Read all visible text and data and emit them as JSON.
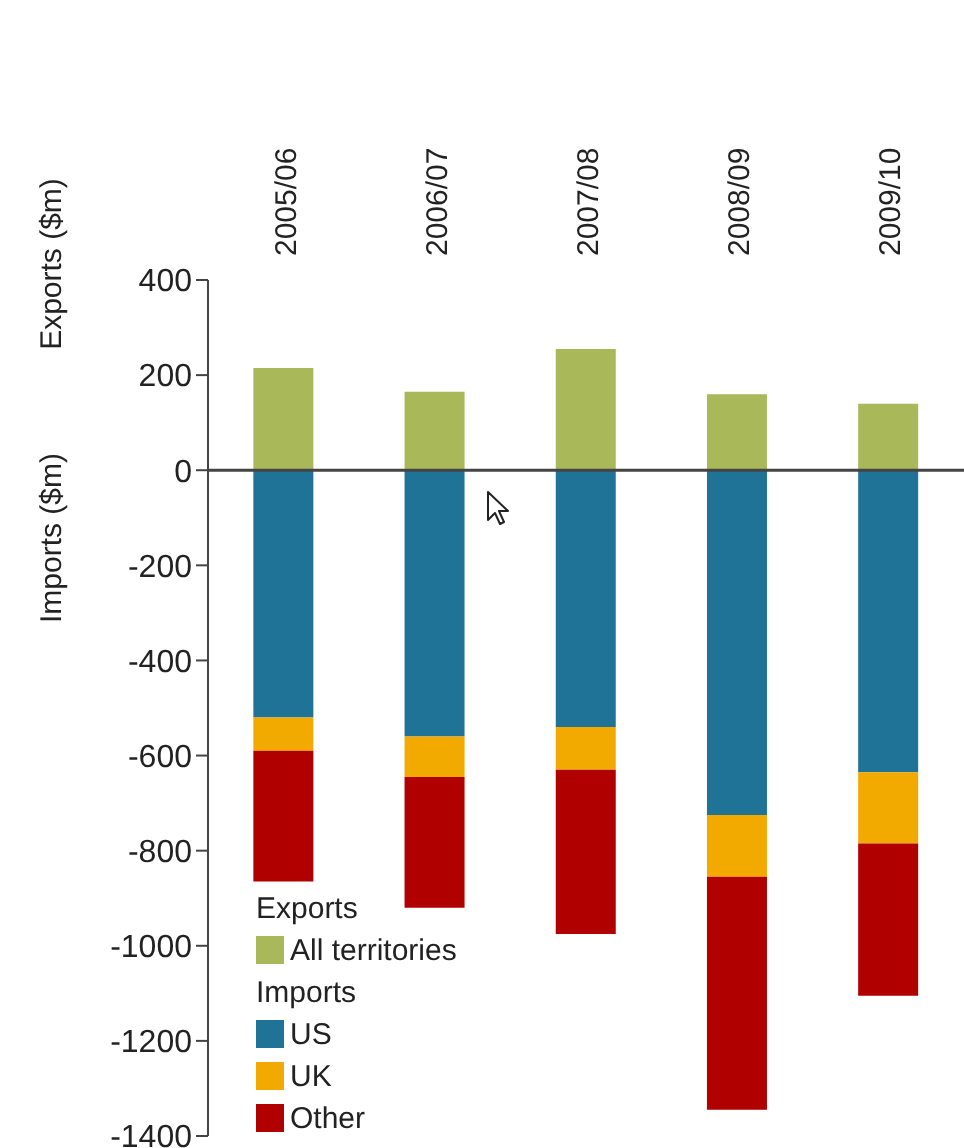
{
  "chart_data": {
    "type": "bar",
    "ylabel": "Exports ($m)",
    "annotations": [
      "Imports ($m)",
      "Exports",
      "Imports"
    ],
    "categories": [
      "2005/06",
      "2006/07",
      "2007/08",
      "2008/09",
      "2009/10"
    ],
    "stacked": true,
    "series": [
      {
        "name": "All territories",
        "color": "#a9b95a",
        "values": [
          215,
          165,
          255,
          160,
          140
        ]
      },
      {
        "name": "US",
        "color": "#1f7396",
        "values": [
          -520,
          -560,
          -540,
          -725,
          -635
        ]
      },
      {
        "name": "UK",
        "color": "#f2a900",
        "values": [
          -70,
          -85,
          -90,
          -130,
          -150
        ]
      },
      {
        "name": "Other",
        "color": "#b00000",
        "values": [
          -275,
          -275,
          -345,
          -490,
          -320
        ]
      }
    ],
    "ylim": [
      -1400,
      400
    ],
    "yticks": [
      -1400,
      -1200,
      -1000,
      -800,
      -600,
      -400,
      -200,
      0,
      200,
      400
    ],
    "ref_lines": [
      {
        "axis": "y",
        "value": 0,
        "color": "#444444"
      }
    ],
    "grid": false,
    "legend": "bottom left"
  }
}
